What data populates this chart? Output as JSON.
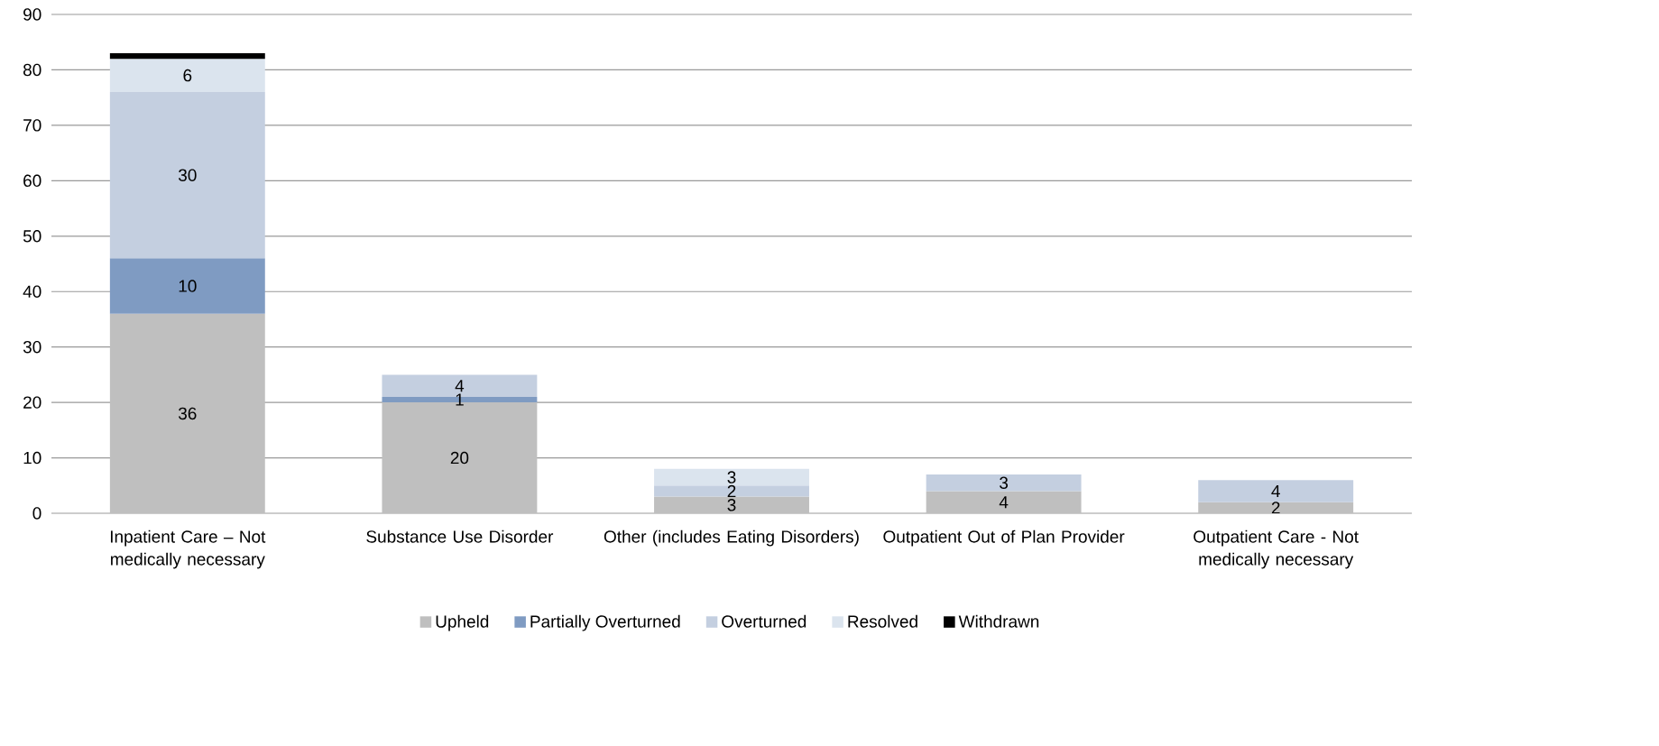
{
  "chart_data": {
    "type": "bar",
    "stacked": true,
    "categories": [
      "Inpatient Care – Not medically necessary",
      "Substance Use Disorder",
      "Other (includes Eating Disorders)",
      "Outpatient Out of Plan Provider",
      "Outpatient Care - Not medically necessary"
    ],
    "series": [
      {
        "name": "Upheld",
        "color": "#bfbfbf",
        "values": [
          36,
          20,
          3,
          4,
          2
        ],
        "value_labels": [
          "36",
          "20",
          "3",
          "4",
          "2"
        ]
      },
      {
        "name": "Partially Overturned",
        "color": "#7f9bc2",
        "values": [
          10,
          1,
          null,
          null,
          null
        ],
        "value_labels": [
          "10",
          "1",
          null,
          null,
          null
        ]
      },
      {
        "name": "Overturned",
        "color": "#c4cfe0",
        "values": [
          30,
          4,
          2,
          3,
          4
        ],
        "value_labels": [
          "30",
          "4",
          "2",
          "3",
          "4"
        ]
      },
      {
        "name": "Resolved",
        "color": "#dbe4ee",
        "values": [
          6,
          null,
          3,
          null,
          null
        ],
        "value_labels": [
          "6",
          null,
          "3",
          null,
          null
        ]
      },
      {
        "name": "Withdrawn",
        "color": "#000000",
        "values": [
          1,
          null,
          null,
          null,
          null
        ],
        "value_labels": [
          null,
          null,
          null,
          null,
          null
        ]
      }
    ],
    "ylim": [
      0,
      90
    ],
    "yticks": [
      0,
      10,
      20,
      30,
      40,
      50,
      60,
      70,
      80,
      90
    ],
    "grid": "y",
    "legend": "bottom"
  }
}
